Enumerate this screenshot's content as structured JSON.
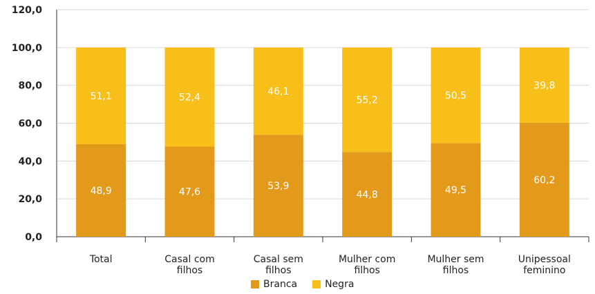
{
  "chart_data": {
    "type": "bar",
    "stacked": true,
    "categories": [
      [
        "Total"
      ],
      [
        "Casal com",
        "filhos"
      ],
      [
        "Casal sem",
        "filhos"
      ],
      [
        "Mulher com",
        "filhos"
      ],
      [
        "Mulher sem",
        "filhos"
      ],
      [
        "Unipessoal",
        "feminino"
      ]
    ],
    "series": [
      {
        "name": "Branca",
        "color": "#E39A1B",
        "values": [
          48.9,
          47.6,
          53.9,
          44.8,
          49.5,
          60.2
        ]
      },
      {
        "name": "Negra",
        "color": "#F8BE1A",
        "values": [
          51.1,
          52.4,
          46.1,
          55.2,
          50.5,
          39.8
        ]
      }
    ],
    "value_labels": {
      "Branca": [
        "48,9",
        "47,6",
        "53,9",
        "44,8",
        "49,5",
        "60,2"
      ],
      "Negra": [
        "51,1",
        "52,4",
        "46,1",
        "55,2",
        "50,5",
        "39,8"
      ]
    },
    "ylim": [
      0,
      120
    ],
    "yticks": [
      0,
      20,
      40,
      60,
      80,
      100,
      120
    ],
    "ytick_labels": [
      "0,0",
      "20,0",
      "40,0",
      "60,0",
      "80,0",
      "100,0",
      "120,0"
    ],
    "grid": true,
    "legend_position": "bottom",
    "title": "",
    "xlabel": "",
    "ylabel": ""
  }
}
